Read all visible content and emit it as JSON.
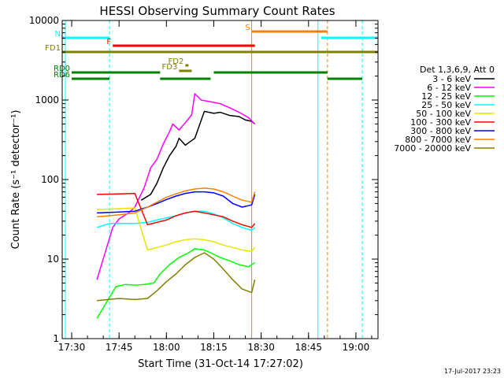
{
  "chart_data": {
    "type": "line",
    "title": "HESSI Observing Summary Count Rates",
    "xlabel": "Start Time (31-Oct-14 17:27:02)",
    "ylabel": "Count Rate (s⁻¹ detector⁻¹)",
    "y_scale": "log",
    "ylim": [
      1,
      10000
    ],
    "xlim": [
      "17:27",
      "19:07"
    ],
    "x_ticks": [
      "17:30",
      "17:45",
      "18:00",
      "18:15",
      "18:30",
      "18:45",
      "19:00"
    ],
    "y_ticks": [
      "1",
      "10",
      "100",
      "1000",
      "10000"
    ],
    "grid": false,
    "legend_position": "right",
    "legend_title": "Det 1,3,6,9, Att 0",
    "timestamp": "17-Jul-2017 23:23",
    "series": [
      {
        "name": "3 - 6 keV",
        "color": "#000000",
        "x": [
          "17:52",
          "17:55",
          "17:57",
          "17:59",
          "18:01",
          "18:03",
          "18:04",
          "18:06",
          "18:07",
          "18:09",
          "18:12",
          "18:15",
          "18:17",
          "18:20",
          "18:23",
          "18:25",
          "18:27",
          "18:28"
        ],
        "y": [
          55,
          65,
          90,
          140,
          200,
          260,
          330,
          270,
          290,
          330,
          720,
          680,
          700,
          640,
          620,
          560,
          540,
          500
        ]
      },
      {
        "name": "6 - 12 keV",
        "color": "#ff00ff",
        "x": [
          "17:38",
          "17:43",
          "17:45",
          "17:48",
          "17:50",
          "17:53",
          "17:55",
          "17:57",
          "17:59",
          "18:01",
          "18:02",
          "18:04",
          "18:06",
          "18:08",
          "18:09",
          "18:11",
          "18:14",
          "18:17",
          "18:20",
          "18:23",
          "18:26",
          "18:28"
        ],
        "y": [
          5.5,
          25,
          32,
          38,
          45,
          80,
          140,
          180,
          280,
          400,
          500,
          420,
          520,
          650,
          1200,
          1000,
          950,
          900,
          800,
          700,
          600,
          500
        ]
      },
      {
        "name": "12 - 25 keV",
        "color": "#00ff00",
        "x": [
          "17:38",
          "17:44",
          "17:47",
          "17:50",
          "17:53",
          "17:56",
          "17:58",
          "18:01",
          "18:04",
          "18:07",
          "18:09",
          "18:12",
          "18:14",
          "18:17",
          "18:20",
          "18:23",
          "18:26",
          "18:28"
        ],
        "y": [
          1.8,
          4.5,
          4.8,
          4.7,
          4.8,
          5.0,
          6.5,
          8.5,
          10.5,
          12,
          13.5,
          13,
          12,
          10.5,
          9.5,
          8.5,
          8,
          9
        ]
      },
      {
        "name": "25 - 50 keV",
        "color": "#00ffff",
        "x": [
          "17:38",
          "17:42",
          "17:45",
          "17:50",
          "17:54",
          "17:57",
          "18:00",
          "18:03",
          "18:06",
          "18:09",
          "18:12",
          "18:15",
          "18:18",
          "18:21",
          "18:24",
          "18:27",
          "18:28"
        ],
        "y": [
          25,
          28,
          28,
          28,
          29,
          31,
          33,
          35,
          38,
          40,
          40,
          37,
          33,
          28,
          25,
          23,
          25
        ]
      },
      {
        "name": "50 - 100 keV",
        "color": "#e6e600",
        "x": [
          "17:38",
          "17:45",
          "17:50",
          "17:54",
          "17:57",
          "18:00",
          "18:03",
          "18:06",
          "18:09",
          "18:12",
          "18:15",
          "18:18",
          "18:21",
          "18:24",
          "18:27",
          "18:28"
        ],
        "y": [
          42,
          43,
          44,
          13,
          14,
          15,
          16.5,
          17.5,
          18,
          17.5,
          16.5,
          15,
          14,
          13,
          12.5,
          14
        ]
      },
      {
        "name": "100 - 300 keV",
        "color": "#ff0000",
        "x": [
          "17:38",
          "17:45",
          "17:50",
          "17:54",
          "17:57",
          "18:00",
          "18:03",
          "18:06",
          "18:09",
          "18:12",
          "18:15",
          "18:18",
          "18:21",
          "18:24",
          "18:27",
          "18:28"
        ],
        "y": [
          65,
          66,
          67,
          27,
          29,
          31,
          35,
          38,
          40,
          38,
          36,
          34,
          30,
          27,
          25,
          28
        ]
      },
      {
        "name": "300 - 800 keV",
        "color": "#0000ff",
        "x": [
          "17:38",
          "17:45",
          "17:50",
          "17:54",
          "17:57",
          "18:00",
          "18:03",
          "18:06",
          "18:09",
          "18:12",
          "18:15",
          "18:18",
          "18:21",
          "18:24",
          "18:27",
          "18:28"
        ],
        "y": [
          38,
          39,
          40,
          45,
          50,
          56,
          62,
          67,
          70,
          70,
          68,
          62,
          50,
          45,
          48,
          65
        ]
      },
      {
        "name": "800 - 7000 keV",
        "color": "#ff8000",
        "x": [
          "17:38",
          "17:45",
          "17:50",
          "17:54",
          "17:57",
          "18:00",
          "18:03",
          "18:06",
          "18:09",
          "18:12",
          "18:15",
          "18:18",
          "18:21",
          "18:24",
          "18:27",
          "18:28"
        ],
        "y": [
          34,
          36,
          38,
          45,
          52,
          60,
          66,
          72,
          76,
          78,
          76,
          70,
          62,
          55,
          52,
          70
        ]
      },
      {
        "name": "7000 - 20000 keV",
        "color": "#808000",
        "x": [
          "17:38",
          "17:45",
          "17:50",
          "17:54",
          "17:57",
          "18:00",
          "18:03",
          "18:06",
          "18:09",
          "18:12",
          "18:15",
          "18:18",
          "18:21",
          "18:24",
          "18:27",
          "18:28"
        ],
        "y": [
          3.0,
          3.2,
          3.1,
          3.2,
          4.0,
          5.2,
          6.5,
          8.5,
          10.5,
          12,
          10,
          7.5,
          5.5,
          4.2,
          3.8,
          5.5
        ]
      }
    ],
    "flag_bars": [
      {
        "label": "N",
        "color": "#00ffff",
        "segments": [
          [
            "17:27",
            "17:42"
          ],
          [
            "18:49",
            "19:07"
          ]
        ],
        "level": 1
      },
      {
        "label": "S",
        "color": "#ff8000",
        "segments": [
          [
            "18:27",
            "18:51"
          ]
        ],
        "level": 0
      },
      {
        "label": "F",
        "color": "#ff0000",
        "segments": [
          [
            "17:43",
            "18:28"
          ]
        ],
        "level": 2
      },
      {
        "label": "FD1",
        "color": "#808000",
        "segments": [
          [
            "17:27",
            "19:07"
          ]
        ],
        "level": 3
      },
      {
        "label": "FD2",
        "color": "#808000",
        "segments": [
          [
            "18:06",
            "18:07"
          ]
        ],
        "level": 4
      },
      {
        "label": "FD3",
        "color": "#808000",
        "segments": [
          [
            "18:04",
            "18:08"
          ]
        ],
        "level": 5
      },
      {
        "label": "RD0",
        "color": "#008000",
        "segments": [
          [
            "17:30",
            "17:58"
          ],
          [
            "18:15",
            "18:51"
          ]
        ],
        "level": 6
      },
      {
        "label": "RD6",
        "color": "#008000",
        "segments": [
          [
            "17:30",
            "17:42"
          ],
          [
            "17:58",
            "18:14"
          ],
          [
            "18:51",
            "19:02"
          ]
        ],
        "level": 7
      }
    ],
    "vertical_markers": [
      {
        "x": "17:28",
        "color": "#00ffff",
        "style": "solid"
      },
      {
        "x": "17:42",
        "color": "#00ffff",
        "style": "dashed"
      },
      {
        "x": "18:27",
        "color": "#ff8000",
        "style": "solid"
      },
      {
        "x": "18:48",
        "color": "#00ffff",
        "style": "solid"
      },
      {
        "x": "18:51",
        "color": "#ff8000",
        "style": "dashed"
      },
      {
        "x": "19:02",
        "color": "#00ffff",
        "style": "dashed"
      }
    ]
  }
}
